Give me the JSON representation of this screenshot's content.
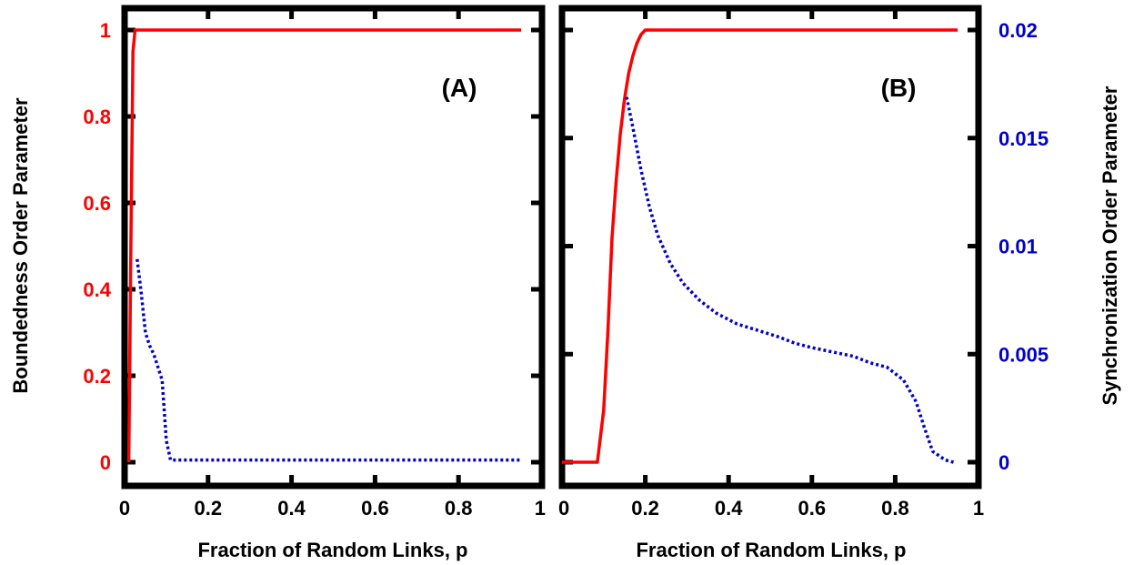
{
  "chart_data": [
    {
      "type": "line",
      "panel_label": "(A)",
      "xlabel": "Fraction of Random Links, p",
      "ylabel": "Boundedness Order Parameter",
      "xlim": [
        0,
        1
      ],
      "ylim": [
        0,
        1
      ],
      "x_ticks": [
        "0",
        "0.2",
        "0.4",
        "0.6",
        "0.8",
        "1"
      ],
      "y_ticks": [
        "0",
        "0.2",
        "0.4",
        "0.6",
        "0.8",
        "1"
      ],
      "grid": false,
      "colors": {
        "boundedness": "#ff0000",
        "synchronization": "#0000cc"
      },
      "series": [
        {
          "style": "solid",
          "axis": "left",
          "points": [
            [
              0.01,
              0
            ],
            [
              0.015,
              0.5
            ],
            [
              0.02,
              0.95
            ],
            [
              0.025,
              1
            ],
            [
              0.95,
              1
            ]
          ]
        },
        {
          "style": "dotted",
          "axis": "left",
          "points": [
            [
              0.03,
              0.47
            ],
            [
              0.04,
              0.39
            ],
            [
              0.05,
              0.3
            ],
            [
              0.06,
              0.27
            ],
            [
              0.07,
              0.25
            ],
            [
              0.08,
              0.22
            ],
            [
              0.09,
              0.19
            ],
            [
              0.1,
              0.05
            ],
            [
              0.11,
              0.005
            ],
            [
              0.95,
              0.005
            ]
          ]
        }
      ]
    },
    {
      "type": "line",
      "panel_label": "(B)",
      "xlabel": "Fraction of Random Links, p",
      "ylabel_right": "Synchronization Order Parameter",
      "xlim": [
        0,
        1
      ],
      "ylim_left": [
        0,
        1
      ],
      "ylim_right": [
        0,
        0.02
      ],
      "x_ticks": [
        "0",
        "0.2",
        "0.4",
        "0.6",
        "0.8",
        "1"
      ],
      "y_ticks_right": [
        "0",
        "0.005",
        "0.01",
        "0.015",
        "0.02"
      ],
      "grid": false,
      "colors": {
        "boundedness": "#ff0000",
        "synchronization": "#0000cc"
      },
      "series": [
        {
          "style": "solid",
          "axis": "left",
          "points": [
            [
              0,
              0
            ],
            [
              0.085,
              0
            ],
            [
              0.1,
              0.12
            ],
            [
              0.11,
              0.3
            ],
            [
              0.12,
              0.52
            ],
            [
              0.13,
              0.65
            ],
            [
              0.14,
              0.76
            ],
            [
              0.15,
              0.84
            ],
            [
              0.16,
              0.9
            ],
            [
              0.17,
              0.94
            ],
            [
              0.18,
              0.97
            ],
            [
              0.19,
              0.99
            ],
            [
              0.2,
              1
            ],
            [
              0.95,
              1
            ]
          ]
        },
        {
          "style": "dotted",
          "axis": "right",
          "points": [
            [
              0.155,
              0.0169
            ],
            [
              0.17,
              0.0155
            ],
            [
              0.19,
              0.0135
            ],
            [
              0.21,
              0.0118
            ],
            [
              0.23,
              0.0105
            ],
            [
              0.26,
              0.0092
            ],
            [
              0.29,
              0.0083
            ],
            [
              0.33,
              0.0075
            ],
            [
              0.37,
              0.0069
            ],
            [
              0.42,
              0.0064
            ],
            [
              0.47,
              0.0061
            ],
            [
              0.52,
              0.0058
            ],
            [
              0.56,
              0.0055
            ],
            [
              0.6,
              0.0053
            ],
            [
              0.65,
              0.0051
            ],
            [
              0.7,
              0.0049
            ],
            [
              0.74,
              0.0046
            ],
            [
              0.78,
              0.0044
            ],
            [
              0.82,
              0.0038
            ],
            [
              0.85,
              0.0028
            ],
            [
              0.87,
              0.0016
            ],
            [
              0.89,
              0.0005
            ],
            [
              0.92,
              0.0001
            ],
            [
              0.94,
              0
            ]
          ]
        }
      ]
    }
  ]
}
